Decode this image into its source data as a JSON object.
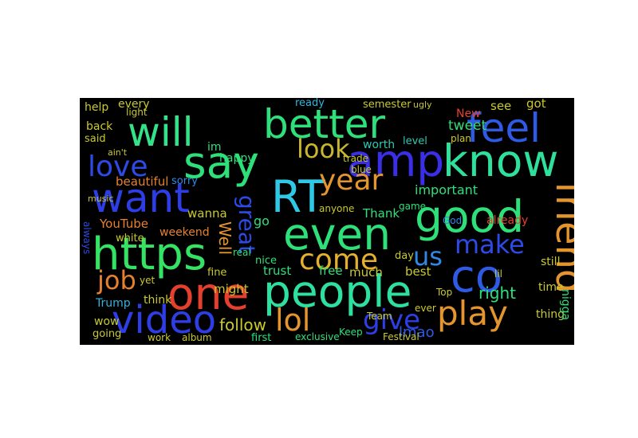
{
  "word_cloud": {
    "background": "#000000",
    "palette": {
      "blue": "#2e3ee6",
      "green": "#2ee07a",
      "teal": "#2ec9b0",
      "orange": "#e5952e",
      "red": "#e5402e",
      "yellow": "#c9c92e",
      "lightgreen": "#7fe82e",
      "cyan": "#2eb6e0"
    },
    "words": [
      {
        "text": "will",
        "color": "#34e28a"
      },
      {
        "text": "better",
        "color": "#2ee07a"
      },
      {
        "text": "feel",
        "color": "#2e5ae6"
      },
      {
        "text": "say",
        "color": "#2ee07a"
      },
      {
        "text": "amp",
        "color": "#3a2ee6"
      },
      {
        "text": "know",
        "color": "#2ee09c"
      },
      {
        "text": "love",
        "color": "#2e4ae6"
      },
      {
        "text": "look",
        "color": "#c9b62e"
      },
      {
        "text": "want",
        "color": "#2e3ee6"
      },
      {
        "text": "RT",
        "color": "#2ec9e6"
      },
      {
        "text": "year",
        "color": "#e5952e"
      },
      {
        "text": "good",
        "color": "#2ee07a"
      },
      {
        "text": "friend",
        "color": "#e5952e"
      },
      {
        "text": "https",
        "color": "#34e264"
      },
      {
        "text": "even",
        "color": "#2ee07a"
      },
      {
        "text": "come",
        "color": "#e5b02e"
      },
      {
        "text": "make",
        "color": "#2e4ae6"
      },
      {
        "text": "co",
        "color": "#2e5ae6"
      },
      {
        "text": "us",
        "color": "#2e8ae6"
      },
      {
        "text": "great",
        "color": "#2e4ae6"
      },
      {
        "text": "one",
        "color": "#e5402e"
      },
      {
        "text": "people",
        "color": "#2ee0a0"
      },
      {
        "text": "job",
        "color": "#e5802e"
      },
      {
        "text": "lol",
        "color": "#e5952e"
      },
      {
        "text": "play",
        "color": "#e5952e"
      },
      {
        "text": "video",
        "color": "#2e3ee6"
      },
      {
        "text": "give",
        "color": "#2e3ee6"
      },
      {
        "text": "right",
        "color": "#2ee07a"
      },
      {
        "text": "follow",
        "color": "#c9c92e"
      },
      {
        "text": "lmao",
        "color": "#2e5ae6"
      },
      {
        "text": "help",
        "color": "#c9c92e"
      },
      {
        "text": "every",
        "color": "#c9c92e"
      },
      {
        "text": "back",
        "color": "#c9c92e"
      },
      {
        "text": "said",
        "color": "#c9c92e"
      },
      {
        "text": "im",
        "color": "#2ee07a"
      },
      {
        "text": "happy",
        "color": "#2ee07a"
      },
      {
        "text": "tweet",
        "color": "#2ee07a"
      },
      {
        "text": "see",
        "color": "#c9c92e"
      },
      {
        "text": "got",
        "color": "#c9c92e"
      },
      {
        "text": "New",
        "color": "#e5402e"
      },
      {
        "text": "semester",
        "color": "#c9c92e"
      },
      {
        "text": "ready",
        "color": "#2eb6e0"
      },
      {
        "text": "worth",
        "color": "#2ec9b0"
      },
      {
        "text": "level",
        "color": "#2ec9b0"
      },
      {
        "text": "important",
        "color": "#2ee07a"
      },
      {
        "text": "already",
        "color": "#e5402e"
      },
      {
        "text": "beautiful",
        "color": "#e5802e"
      },
      {
        "text": "sorry",
        "color": "#2e8ae6"
      },
      {
        "text": "Well",
        "color": "#e5952e"
      },
      {
        "text": "wanna",
        "color": "#c9c92e"
      },
      {
        "text": "YouTube",
        "color": "#e5802e"
      },
      {
        "text": "weekend",
        "color": "#e5802e"
      },
      {
        "text": "white",
        "color": "#c9c92e"
      },
      {
        "text": "Thank",
        "color": "#2ee07a"
      },
      {
        "text": "anyone",
        "color": "#c9c92e"
      },
      {
        "text": "free",
        "color": "#2ee07a"
      },
      {
        "text": "trust",
        "color": "#2ee07a"
      },
      {
        "text": "nice",
        "color": "#2ee07a"
      },
      {
        "text": "much",
        "color": "#c9c92e"
      },
      {
        "text": "day",
        "color": "#c9c92e"
      },
      {
        "text": "best",
        "color": "#c9c92e"
      },
      {
        "text": "go",
        "color": "#2ee07a"
      },
      {
        "text": "fine",
        "color": "#c9c92e"
      },
      {
        "text": "might",
        "color": "#c9c92e"
      },
      {
        "text": "think",
        "color": "#c9c92e"
      },
      {
        "text": "Trump",
        "color": "#2eb6e0"
      },
      {
        "text": "yet",
        "color": "#c9c92e"
      },
      {
        "text": "wow",
        "color": "#c9c92e"
      },
      {
        "text": "going",
        "color": "#c9c92e"
      },
      {
        "text": "work",
        "color": "#c9c92e"
      },
      {
        "text": "album",
        "color": "#c9c92e"
      },
      {
        "text": "first",
        "color": "#2ee07a"
      },
      {
        "text": "exclusive",
        "color": "#2ee07a"
      },
      {
        "text": "Keep",
        "color": "#2ee07a"
      },
      {
        "text": "Festival",
        "color": "#c9c92e"
      },
      {
        "text": "ever",
        "color": "#c9c92e"
      },
      {
        "text": "Top",
        "color": "#c9c92e"
      },
      {
        "text": "still",
        "color": "#c9c92e"
      },
      {
        "text": "time",
        "color": "#c9c92e"
      },
      {
        "text": "thing",
        "color": "#c9c92e"
      },
      {
        "text": "nigga",
        "color": "#2ee07a"
      },
      {
        "text": "lil",
        "color": "#c9c92e"
      },
      {
        "text": "God",
        "color": "#2e8ae6"
      },
      {
        "text": "game",
        "color": "#2ee07a"
      },
      {
        "text": "real",
        "color": "#2ee07a"
      },
      {
        "text": "blue",
        "color": "#c9c92e"
      },
      {
        "text": "trade",
        "color": "#c9c92e"
      },
      {
        "text": "plan",
        "color": "#c9c92e"
      },
      {
        "text": "music",
        "color": "#c9c92e"
      },
      {
        "text": "always",
        "color": "#2e4ae6"
      },
      {
        "text": "ain't",
        "color": "#c9c92e"
      },
      {
        "text": "Team",
        "color": "#c9c92e"
      },
      {
        "text": "light",
        "color": "#c9c92e"
      },
      {
        "text": "ugly",
        "color": "#c9c92e"
      }
    ]
  }
}
